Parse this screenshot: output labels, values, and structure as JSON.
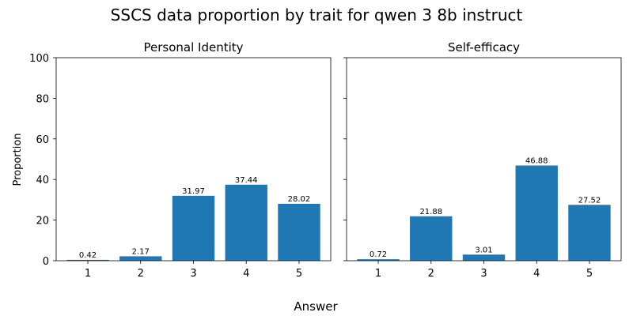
{
  "chart_data": {
    "title": "SSCS data proportion by trait for qwen 3 8b instruct",
    "type": "bar",
    "xlabel": "Answer",
    "ylabel": "Proportion",
    "ylim": [
      0,
      100
    ],
    "yticks": [
      0,
      20,
      40,
      60,
      80,
      100
    ],
    "categories": [
      "1",
      "2",
      "3",
      "4",
      "5"
    ],
    "bar_color": "#1f77b4",
    "grid": false,
    "panels": [
      {
        "title": "Personal Identity",
        "values": [
          0.42,
          2.17,
          31.97,
          37.44,
          28.02
        ]
      },
      {
        "title": "Self-efficacy",
        "values": [
          0.72,
          21.88,
          3.01,
          46.88,
          27.52
        ]
      }
    ]
  }
}
